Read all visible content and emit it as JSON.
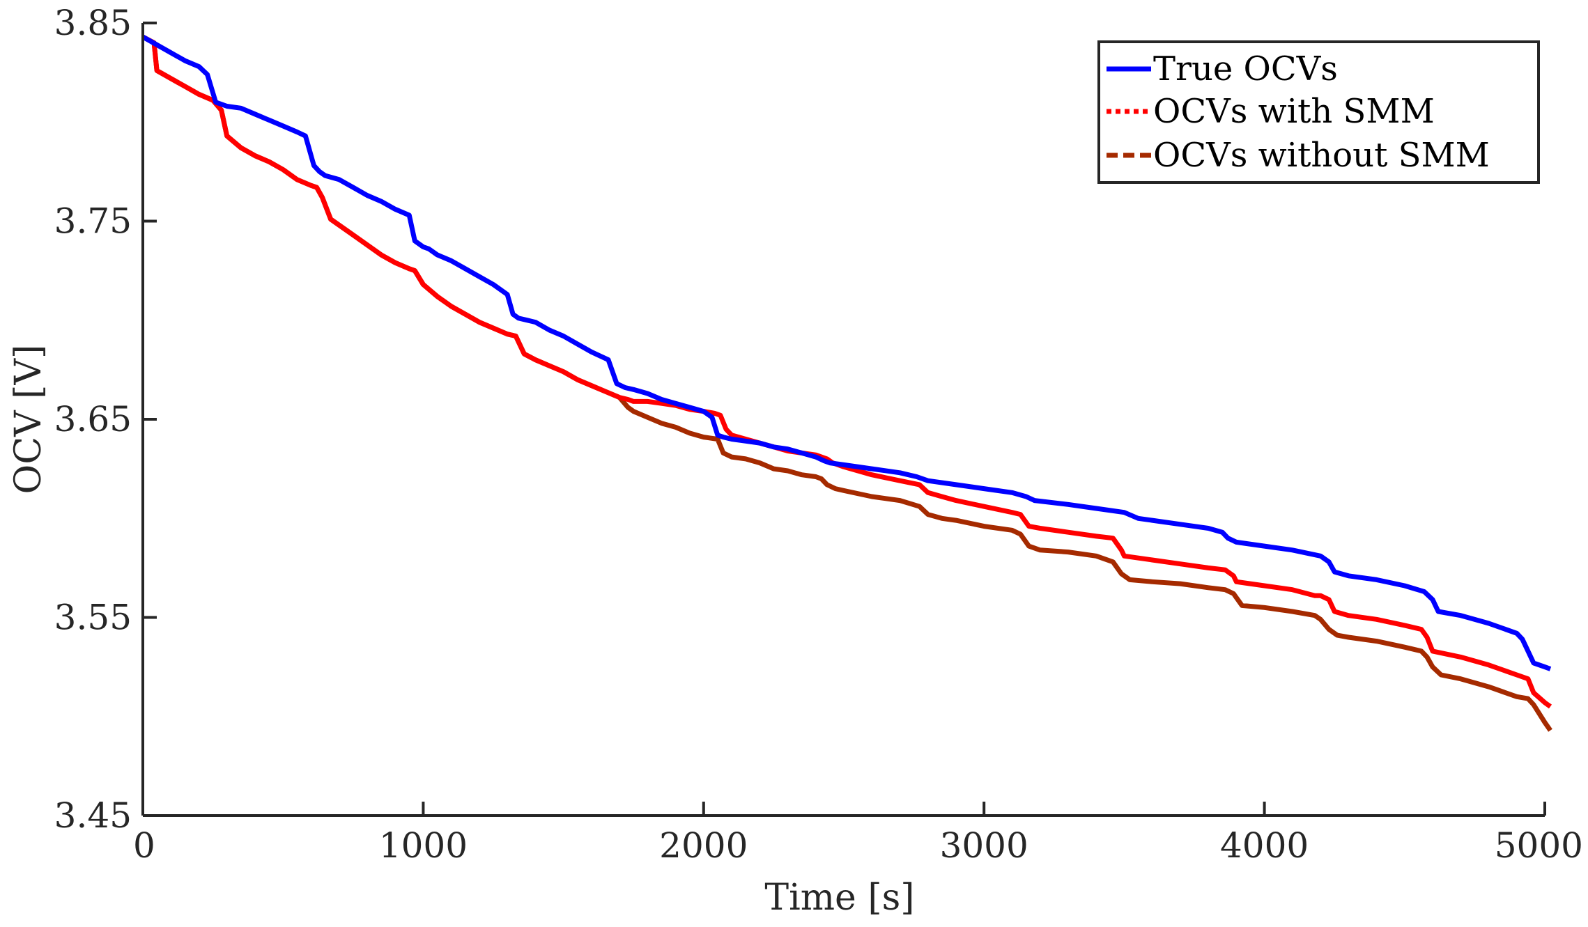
{
  "chart_data": {
    "type": "line",
    "xlabel": "Time [s]",
    "ylabel": "OCV [V]",
    "xlim": [
      0,
      5000
    ],
    "ylim": [
      3.45,
      3.85
    ],
    "xticks": [
      "0",
      "1000",
      "2000",
      "3000",
      "4000",
      "5000"
    ],
    "yticks": [
      "3.45",
      "3.55",
      "3.65",
      "3.75",
      "3.85"
    ],
    "grid": false,
    "legend_position": "top-right",
    "series": [
      {
        "name": "True OCVs",
        "color": "#0000ff",
        "style": "solid",
        "x": [
          0,
          50,
          100,
          150,
          200,
          230,
          260,
          300,
          350,
          400,
          450,
          500,
          550,
          580,
          610,
          630,
          650,
          700,
          750,
          800,
          850,
          900,
          950,
          970,
          1000,
          1020,
          1050,
          1100,
          1150,
          1200,
          1250,
          1300,
          1320,
          1340,
          1370,
          1400,
          1450,
          1500,
          1550,
          1600,
          1660,
          1690,
          1720,
          1750,
          1800,
          1850,
          1900,
          1950,
          2000,
          2030,
          2050,
          2070,
          2100,
          2150,
          2200,
          2250,
          2300,
          2350,
          2400,
          2430,
          2450,
          2500,
          2600,
          2700,
          2760,
          2800,
          2900,
          3000,
          3100,
          3150,
          3180,
          3300,
          3400,
          3500,
          3550,
          3600,
          3700,
          3800,
          3850,
          3870,
          3900,
          4000,
          4100,
          4200,
          4230,
          4250,
          4300,
          4400,
          4500,
          4570,
          4600,
          4620,
          4700,
          4800,
          4900,
          4920,
          4940,
          4960,
          5000,
          5020
        ],
        "y": [
          3.843,
          3.839,
          3.835,
          3.831,
          3.828,
          3.824,
          3.81,
          3.808,
          3.807,
          3.804,
          3.801,
          3.798,
          3.795,
          3.793,
          3.778,
          3.775,
          3.773,
          3.771,
          3.767,
          3.763,
          3.76,
          3.756,
          3.753,
          3.74,
          3.737,
          3.736,
          3.733,
          3.73,
          3.726,
          3.722,
          3.718,
          3.713,
          3.703,
          3.701,
          3.7,
          3.699,
          3.695,
          3.692,
          3.688,
          3.684,
          3.68,
          3.668,
          3.666,
          3.665,
          3.663,
          3.66,
          3.658,
          3.656,
          3.654,
          3.651,
          3.642,
          3.641,
          3.64,
          3.639,
          3.638,
          3.636,
          3.635,
          3.633,
          3.631,
          3.629,
          3.628,
          3.627,
          3.625,
          3.623,
          3.621,
          3.619,
          3.617,
          3.615,
          3.613,
          3.611,
          3.609,
          3.607,
          3.605,
          3.603,
          3.6,
          3.599,
          3.597,
          3.595,
          3.593,
          3.59,
          3.588,
          3.586,
          3.584,
          3.581,
          3.578,
          3.573,
          3.571,
          3.569,
          3.566,
          3.563,
          3.559,
          3.553,
          3.551,
          3.547,
          3.542,
          3.539,
          3.533,
          3.527,
          3.525,
          3.524
        ]
      },
      {
        "name": "OCVs with SMM",
        "color": "#ff0000",
        "style": "dotted",
        "x": [
          0,
          40,
          50,
          100,
          150,
          200,
          250,
          280,
          300,
          350,
          400,
          450,
          500,
          550,
          600,
          620,
          640,
          670,
          700,
          750,
          800,
          850,
          900,
          950,
          970,
          1000,
          1050,
          1100,
          1150,
          1200,
          1250,
          1300,
          1330,
          1360,
          1400,
          1450,
          1500,
          1550,
          1600,
          1650,
          1700,
          1730,
          1750,
          1800,
          1850,
          1900,
          1950,
          2000,
          2040,
          2060,
          2080,
          2100,
          2150,
          2200,
          2250,
          2300,
          2350,
          2400,
          2420,
          2440,
          2460,
          2500,
          2600,
          2700,
          2770,
          2800,
          2850,
          2900,
          3000,
          3100,
          3130,
          3160,
          3200,
          3300,
          3400,
          3460,
          3490,
          3500,
          3600,
          3700,
          3800,
          3860,
          3890,
          3900,
          4000,
          4100,
          4180,
          4200,
          4230,
          4250,
          4300,
          4400,
          4500,
          4560,
          4580,
          4600,
          4700,
          4800,
          4900,
          4940,
          4960,
          5000,
          5020
        ],
        "y": [
          3.843,
          3.84,
          3.826,
          3.822,
          3.818,
          3.814,
          3.811,
          3.806,
          3.793,
          3.787,
          3.783,
          3.78,
          3.776,
          3.771,
          3.768,
          3.767,
          3.762,
          3.751,
          3.748,
          3.743,
          3.738,
          3.733,
          3.729,
          3.726,
          3.725,
          3.718,
          3.712,
          3.707,
          3.703,
          3.699,
          3.696,
          3.693,
          3.692,
          3.683,
          3.68,
          3.677,
          3.674,
          3.67,
          3.667,
          3.664,
          3.661,
          3.66,
          3.659,
          3.659,
          3.658,
          3.657,
          3.655,
          3.654,
          3.653,
          3.652,
          3.645,
          3.642,
          3.64,
          3.638,
          3.636,
          3.634,
          3.633,
          3.632,
          3.631,
          3.63,
          3.628,
          3.626,
          3.622,
          3.619,
          3.617,
          3.613,
          3.611,
          3.609,
          3.606,
          3.603,
          3.602,
          3.596,
          3.595,
          3.593,
          3.591,
          3.59,
          3.584,
          3.581,
          3.579,
          3.577,
          3.575,
          3.574,
          3.571,
          3.568,
          3.566,
          3.564,
          3.561,
          3.561,
          3.559,
          3.553,
          3.551,
          3.549,
          3.546,
          3.544,
          3.54,
          3.533,
          3.53,
          3.526,
          3.521,
          3.519,
          3.512,
          3.507,
          3.505
        ]
      },
      {
        "name": "OCVs without SMM",
        "color": "#a52a00",
        "style": "dashed",
        "x": [
          0,
          40,
          50,
          100,
          150,
          200,
          250,
          280,
          300,
          350,
          400,
          450,
          500,
          550,
          600,
          620,
          640,
          670,
          700,
          750,
          800,
          850,
          900,
          950,
          970,
          1000,
          1050,
          1100,
          1150,
          1200,
          1250,
          1300,
          1330,
          1360,
          1400,
          1450,
          1500,
          1550,
          1600,
          1650,
          1700,
          1730,
          1750,
          1800,
          1850,
          1900,
          1950,
          2000,
          2050,
          2070,
          2100,
          2150,
          2200,
          2250,
          2300,
          2350,
          2400,
          2420,
          2440,
          2470,
          2500,
          2600,
          2700,
          2770,
          2800,
          2850,
          2900,
          3000,
          3100,
          3130,
          3160,
          3200,
          3300,
          3400,
          3460,
          3490,
          3520,
          3600,
          3700,
          3800,
          3860,
          3890,
          3920,
          4000,
          4100,
          4180,
          4200,
          4230,
          4260,
          4300,
          4400,
          4500,
          4560,
          4580,
          4600,
          4630,
          4700,
          4800,
          4900,
          4940,
          4960,
          5000,
          5020
        ],
        "y": [
          3.843,
          3.84,
          3.826,
          3.822,
          3.818,
          3.814,
          3.811,
          3.806,
          3.793,
          3.787,
          3.783,
          3.78,
          3.776,
          3.771,
          3.768,
          3.767,
          3.762,
          3.751,
          3.748,
          3.743,
          3.738,
          3.733,
          3.729,
          3.726,
          3.725,
          3.718,
          3.712,
          3.707,
          3.703,
          3.699,
          3.696,
          3.693,
          3.692,
          3.683,
          3.68,
          3.677,
          3.674,
          3.67,
          3.667,
          3.664,
          3.661,
          3.656,
          3.654,
          3.651,
          3.648,
          3.646,
          3.643,
          3.641,
          3.64,
          3.633,
          3.631,
          3.63,
          3.628,
          3.625,
          3.624,
          3.622,
          3.621,
          3.62,
          3.617,
          3.615,
          3.614,
          3.611,
          3.609,
          3.606,
          3.602,
          3.6,
          3.599,
          3.596,
          3.594,
          3.592,
          3.586,
          3.584,
          3.583,
          3.581,
          3.578,
          3.572,
          3.569,
          3.568,
          3.567,
          3.565,
          3.564,
          3.562,
          3.556,
          3.555,
          3.553,
          3.551,
          3.549,
          3.544,
          3.541,
          3.54,
          3.538,
          3.535,
          3.533,
          3.53,
          3.525,
          3.521,
          3.519,
          3.515,
          3.51,
          3.509,
          3.506,
          3.497,
          3.493
        ]
      }
    ]
  }
}
